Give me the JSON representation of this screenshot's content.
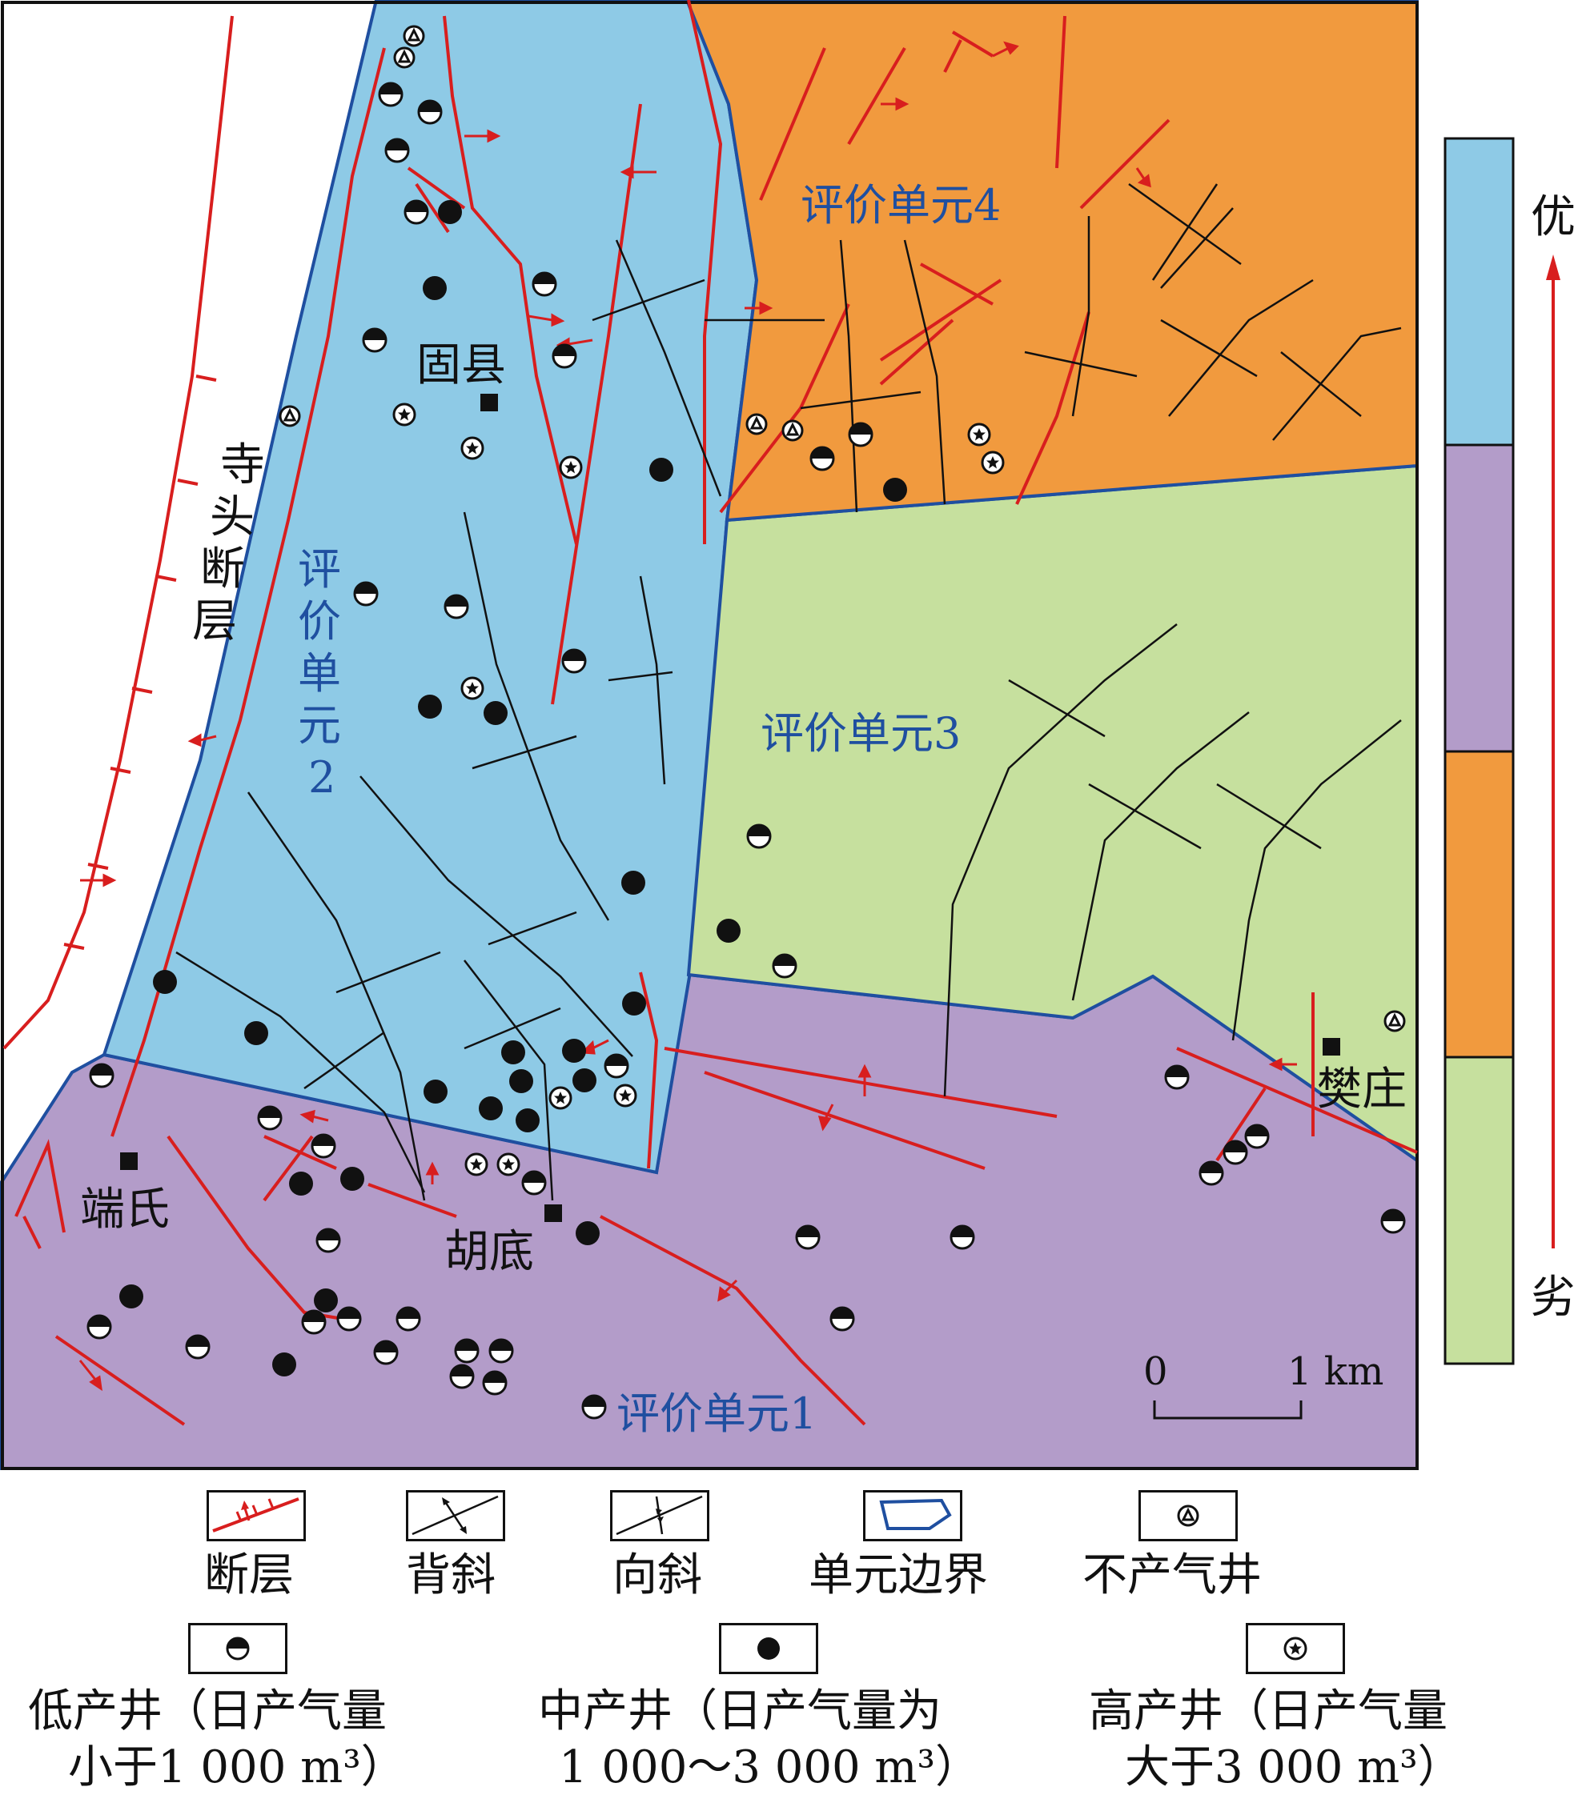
{
  "map": {
    "units": {
      "unit1": "评价单元1",
      "unit2_lines": [
        "评",
        "价",
        "单",
        "元",
        "2"
      ],
      "unit3": "评价单元3",
      "unit4": "评价单元4"
    },
    "places": {
      "guxian": "固县",
      "duanshi": "端氏",
      "hudi": "胡底",
      "fanzhuang": "樊庄",
      "fault_lines": [
        "寺",
        "头",
        "断",
        "层"
      ]
    },
    "scale_bar": {
      "zero": "0",
      "one": "1 km"
    },
    "rating_bar": {
      "top_label": "优",
      "bottom_label": "劣",
      "colors": [
        "#8ecae6",
        "#b39cc9",
        "#f19a3e",
        "#c6e09e"
      ]
    }
  },
  "colors": {
    "unit1": "#b39cc9",
    "unit2": "#8ecae6",
    "unit3": "#c6e09e",
    "unit4": "#f19a3e",
    "fault": "#d81e1e",
    "boundary": "#1f4fa0"
  },
  "legend": {
    "fault": "断层",
    "anticline": "背斜",
    "syncline": "向斜",
    "boundary": "单元边界",
    "dry_well": "不产气井",
    "low_line1": "低产井（日产气量",
    "low_line2": "小于1 000 m³）",
    "mid_line1": "中产井（日产气量为",
    "mid_line2": "1 000～3 000 m³）",
    "high_line1": "高产井（日产气量",
    "high_line2": "大于3 000 m³）"
  }
}
